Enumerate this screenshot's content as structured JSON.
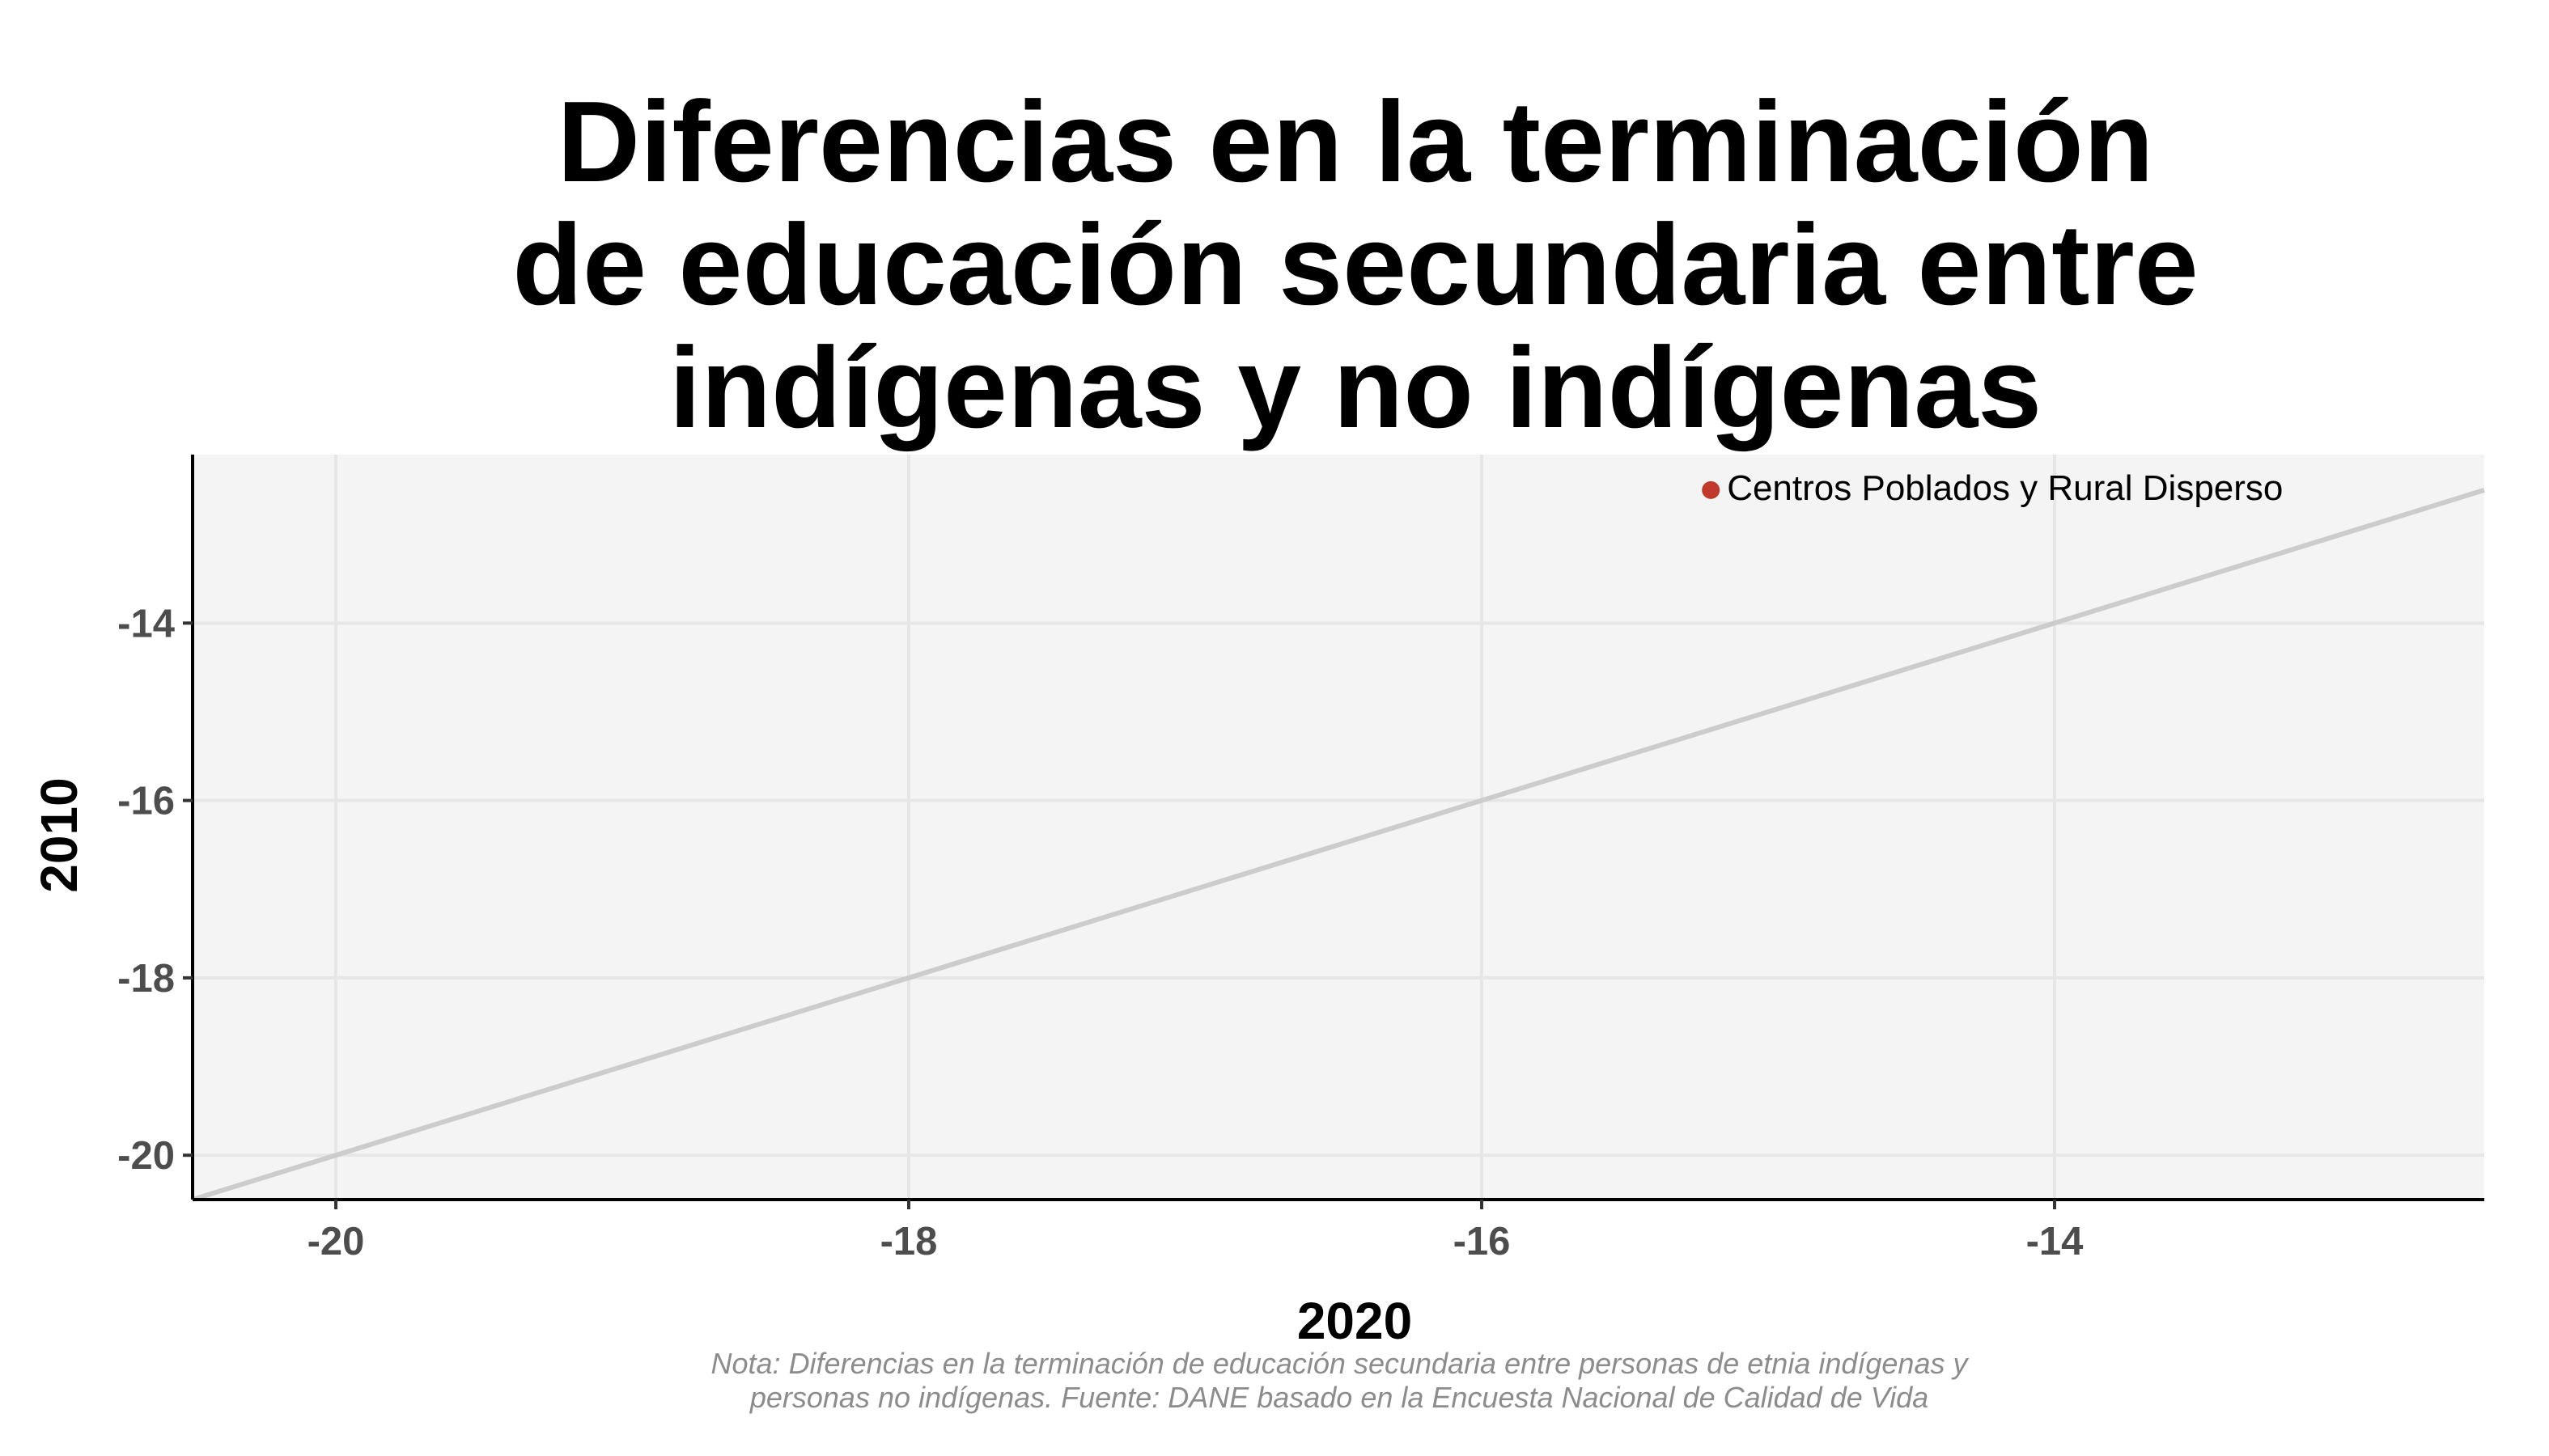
{
  "chart_data": {
    "type": "scatter",
    "title_lines": [
      "Diferencias en la terminación",
      "de educación secundaria entre",
      "indígenas y no indígenas"
    ],
    "xlabel": "2020",
    "ylabel": "2010",
    "xlim": [
      -20.5,
      -12.5
    ],
    "ylim": [
      -20.5,
      -12.1
    ],
    "xticks": [
      -20,
      -18,
      -16,
      -14
    ],
    "yticks": [
      -20,
      -18,
      -16,
      -14
    ],
    "grid": true,
    "reference_line": {
      "type": "identity",
      "color": "#cccccc"
    },
    "points": [
      {
        "label": "Centros Poblados y Rural Disperso",
        "x": -15.2,
        "y": -12.5,
        "color": "#c0392b"
      }
    ],
    "note_lines": [
      "Nota: Diferencias en la terminación de educación secundaria entre personas de etnia indígenas y",
      "personas no indígenas. Fuente: DANE basado en la Encuesta Nacional de Calidad de Vida"
    ],
    "colors": {
      "panel_background": "#f4f4f4",
      "gridline": "#e6e6e6",
      "axis_line": "#000000"
    }
  }
}
